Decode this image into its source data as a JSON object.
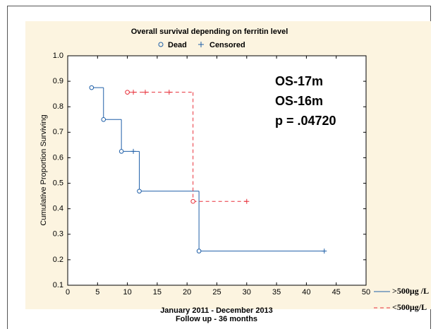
{
  "chart_data": {
    "type": "step",
    "title": "Overall survival depending on ferritin level",
    "marker_legend": [
      "Dead",
      "Censored"
    ],
    "x_label": [
      "January 2011 - December 2013",
      "Follow up - 36 months"
    ],
    "y_label": "Cumulative Proportion Surviving",
    "xlim": [
      0,
      50
    ],
    "xticks": [
      0,
      5,
      10,
      15,
      20,
      25,
      30,
      35,
      40,
      45,
      50
    ],
    "ylim": [
      0.1,
      1.0
    ],
    "yticks": [
      0.1,
      0.2,
      0.3,
      0.4,
      0.5,
      0.6,
      0.7,
      0.8,
      0.9,
      {
        "value": 1.0,
        "label": "1.0"
      }
    ],
    "annotations": [
      {
        "text": "OS-17m",
        "color": "#e8303a"
      },
      {
        "text": "OS-16m",
        "color": "#1f62ad"
      },
      {
        "text": "p = .04720",
        "color": "#000000"
      }
    ],
    "series": [
      {
        "name": ">500µg /L",
        "color": "#1f5fa8",
        "dashed": false,
        "x": [
          4,
          6,
          9,
          11,
          12,
          22,
          43
        ],
        "values": [
          0.875,
          0.75,
          0.625,
          0.625,
          0.469,
          0.234,
          0.234
        ],
        "markers": [
          "Dead",
          "Dead",
          "Dead",
          "Censored",
          "Dead",
          "Dead",
          "Censored"
        ]
      },
      {
        "name": "<500µg/L",
        "color": "#e8303a",
        "dashed": true,
        "x": [
          10,
          11,
          13,
          17,
          21,
          30
        ],
        "values": [
          0.857,
          0.857,
          0.857,
          0.857,
          0.429,
          0.429
        ],
        "markers": [
          "Dead",
          "Censored",
          "Censored",
          "Censored",
          "Dead",
          "Censored"
        ]
      }
    ]
  }
}
